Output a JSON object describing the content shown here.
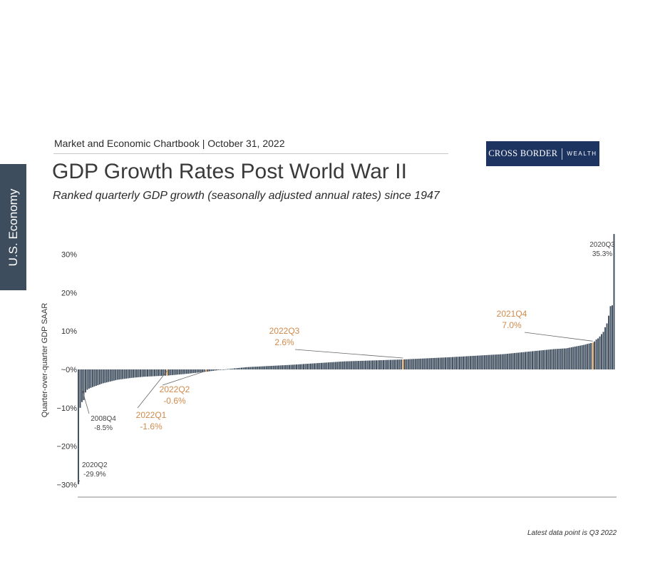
{
  "side_tab": "U.S. Economy",
  "header": "Market and Economic Chartbook | October 31, 2022",
  "logo": {
    "left": "CROSS BORDER",
    "right": "WEALTH"
  },
  "title": "GDP Growth Rates Post World War II",
  "subtitle": "Ranked quarterly GDP growth (seasonally adjusted annual rates) since 1947",
  "footnote": "Latest data point is Q3 2022",
  "colors": {
    "bar": "#3e4d5d",
    "highlight": "#d4a373",
    "highlight_text": "#d08a4c",
    "tab": "#3e4d5d",
    "logo_bg": "#1d3461"
  },
  "chart_data": {
    "type": "bar",
    "ylabel": "Quarter-over-quarter GDP SAAR",
    "ylim": [
      -30,
      35.3
    ],
    "yticks": [
      30,
      20,
      10,
      0,
      -10,
      -20,
      -30
    ],
    "ytick_labels": [
      "30%",
      "20%",
      "10%",
      "~0%",
      "−10%",
      "−20%",
      "−30%"
    ],
    "n_quarters": 303,
    "sorted": "ascending",
    "labeled_points": [
      {
        "label": "2020Q2",
        "value": -29.9,
        "value_label": "-29.9%",
        "highlight": false
      },
      {
        "label": "2008Q4",
        "value": -8.5,
        "value_label": "-8.5%",
        "highlight": false
      },
      {
        "label": "2022Q1",
        "value": -1.6,
        "value_label": "-1.6%",
        "highlight": true
      },
      {
        "label": "2022Q2",
        "value": -0.6,
        "value_label": "-0.6%",
        "highlight": true
      },
      {
        "label": "2022Q3",
        "value": 2.6,
        "value_label": "2.6%",
        "highlight": true
      },
      {
        "label": "2021Q4",
        "value": 7.0,
        "value_label": "7.0%",
        "highlight": true
      },
      {
        "label": "2020Q3",
        "value": 35.3,
        "value_label": "35.3%",
        "highlight": false
      }
    ],
    "top_values": [
      7.0,
      7.3,
      7.8,
      8.1,
      8.6,
      9.2,
      9.8,
      11.0,
      12.0,
      14.0,
      16.5,
      16.7,
      35.3
    ],
    "bottom_values": [
      -29.9,
      -10.0,
      -8.5,
      -8.0,
      -6.0,
      -5.3,
      -5.0,
      -4.8,
      -4.6
    ],
    "rank_anchors": [
      [
        0,
        -29.9
      ],
      [
        1,
        -10.0
      ],
      [
        2,
        -8.5
      ],
      [
        3,
        -8.0
      ],
      [
        4,
        -6.0
      ],
      [
        8,
        -4.6
      ],
      [
        14,
        -3.6
      ],
      [
        22,
        -2.7
      ],
      [
        30,
        -2.2
      ],
      [
        37,
        -1.9
      ],
      [
        50,
        -1.6
      ],
      [
        62,
        -1.1
      ],
      [
        72,
        -0.6
      ],
      [
        80,
        -0.1
      ],
      [
        95,
        0.6
      ],
      [
        120,
        1.2
      ],
      [
        150,
        2.1
      ],
      [
        183,
        2.6
      ],
      [
        210,
        3.2
      ],
      [
        240,
        4.0
      ],
      [
        268,
        5.3
      ],
      [
        275,
        5.5
      ],
      [
        285,
        6.4
      ],
      [
        290,
        7.0
      ]
    ]
  }
}
